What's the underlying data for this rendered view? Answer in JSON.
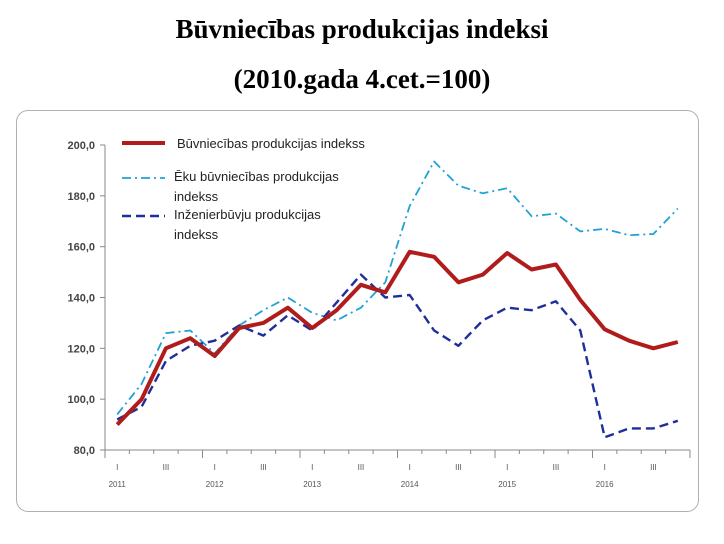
{
  "title": "Būvniecības produkcijas indeksi",
  "subtitle": "(2010.gada 4.cet.=100)",
  "chart_data": {
    "type": "line",
    "title": "Būvniecības produkcijas indeksi",
    "subtitle": "(2010.gada 4.cet.=100)",
    "ylim": [
      80,
      200
    ],
    "yticks": [
      "80,0",
      "100,0",
      "120,0",
      "140,0",
      "160,0",
      "180,0",
      "200,0"
    ],
    "ytick_values": [
      80,
      100,
      120,
      140,
      160,
      180,
      200
    ],
    "x": [
      "2011 I",
      "2011 II",
      "2011 III",
      "2011 IV",
      "2012 I",
      "2012 II",
      "2012 III",
      "2012 IV",
      "2013 I",
      "2013 II",
      "2013 III",
      "2013 IV",
      "2014 I",
      "2014 II",
      "2014 III",
      "2014 IV",
      "2015 I",
      "2015 II",
      "2015 III",
      "2015 IV",
      "2016 I",
      "2016 II",
      "2016 III",
      "2016 IV"
    ],
    "quarter_labels": [
      "I",
      "III",
      "I",
      "III",
      "I",
      "III",
      "I",
      "III",
      "I",
      "III",
      "I",
      "III"
    ],
    "year_labels": [
      "2011",
      "2012",
      "2013",
      "2014",
      "2015",
      "2016"
    ],
    "grid": false,
    "legend_position": "top-left",
    "series": [
      {
        "name": "Būvniecības produkcijas indekss",
        "color": "#b01c1c",
        "style": "solid",
        "values": [
          90,
          100,
          120,
          124,
          117,
          128,
          130,
          136,
          128,
          135,
          145,
          142,
          158,
          156,
          146,
          149,
          157.5,
          151,
          153,
          139,
          127.5,
          123,
          120,
          122.5
        ]
      },
      {
        "name": "Ēku būvniecības produkcijas indekss",
        "color": "#1fa2d6",
        "style": "dashdot",
        "values": [
          94,
          106,
          126,
          127,
          118,
          129,
          135,
          140,
          134,
          131,
          136,
          146,
          176,
          193.5,
          184,
          181,
          183,
          172,
          173,
          166,
          167,
          164.5,
          165,
          175
        ]
      },
      {
        "name": "Inženierbūvju produkcijas indekss",
        "color": "#1f2f9a",
        "style": "dashed",
        "values": [
          92,
          97,
          115,
          121,
          123,
          129,
          125,
          133,
          127,
          138,
          149,
          140,
          141,
          127,
          121,
          131,
          136,
          135,
          138.5,
          127,
          85,
          88.5,
          88.5,
          91.5
        ]
      }
    ],
    "legend": [
      {
        "lines": [
          "Būvniecības produkcijas indekss"
        ]
      },
      {
        "lines": [
          "Ēku būvniecības produkcijas",
          "indekss"
        ]
      },
      {
        "lines": [
          "Inženierbūvju produkcijas",
          "indekss"
        ]
      }
    ]
  }
}
